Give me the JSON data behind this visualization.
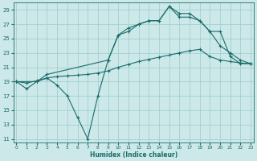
{
  "xlabel": "Humidex (Indice chaleur)",
  "bg_color": "#cce8e8",
  "grid_color": "#99cccc",
  "line_color": "#1a6b6b",
  "xlim": [
    -0.3,
    23.3
  ],
  "ylim": [
    10.5,
    30.0
  ],
  "yticks": [
    11,
    13,
    15,
    17,
    19,
    21,
    23,
    25,
    27,
    29
  ],
  "xticks": [
    0,
    1,
    2,
    3,
    4,
    5,
    6,
    7,
    8,
    9,
    10,
    11,
    12,
    13,
    14,
    15,
    16,
    17,
    18,
    19,
    20,
    21,
    22,
    23
  ],
  "line1_x": [
    0,
    1,
    2,
    3,
    4,
    5,
    6,
    7,
    8,
    9,
    10,
    11,
    12,
    13,
    14,
    15,
    16,
    17,
    18,
    19,
    20,
    21,
    22,
    23
  ],
  "line1_y": [
    19,
    18,
    19,
    19.5,
    18.5,
    17,
    14,
    11,
    17,
    22,
    25.5,
    26,
    27,
    27.5,
    27.5,
    29.5,
    28,
    28,
    27.5,
    26,
    24,
    23,
    22,
    21.5
  ],
  "line2_x": [
    0,
    2,
    3,
    9,
    10,
    11,
    12,
    13,
    14,
    15,
    16,
    17,
    18,
    19,
    20,
    21,
    22,
    23
  ],
  "line2_y": [
    19,
    19,
    20,
    22,
    25.5,
    26.5,
    27,
    27.5,
    27.5,
    29.5,
    28.5,
    28.5,
    27.5,
    26,
    26,
    22.5,
    21.5,
    21.5
  ],
  "line3_x": [
    0,
    1,
    2,
    3,
    4,
    5,
    6,
    7,
    8,
    9,
    10,
    11,
    12,
    13,
    14,
    15,
    16,
    17,
    18,
    19,
    20,
    21,
    22,
    23
  ],
  "line3_y": [
    19,
    18.8,
    19.1,
    19.5,
    19.7,
    19.8,
    19.9,
    20.0,
    20.2,
    20.5,
    21.0,
    21.4,
    21.8,
    22.1,
    22.4,
    22.7,
    23.0,
    23.3,
    23.5,
    22.5,
    22.0,
    21.8,
    21.6,
    21.5
  ]
}
